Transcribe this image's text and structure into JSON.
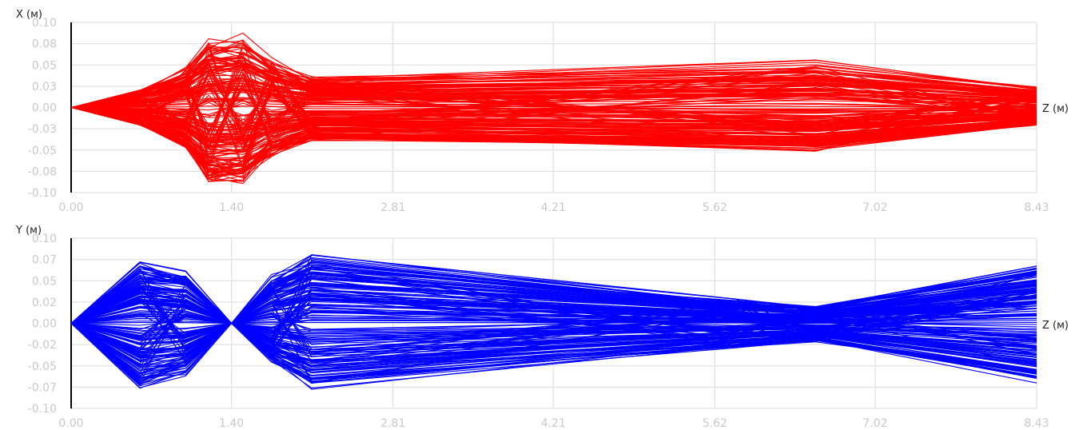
{
  "chart_data": [
    {
      "type": "line",
      "ylabel": "X (м)",
      "xlabel": "Z (м)",
      "color": "#ff0000",
      "x_ticks": [
        "0.00",
        "1.40",
        "2.81",
        "4.21",
        "5.62",
        "7.02",
        "8.43"
      ],
      "y_ticks": [
        "0.10",
        "0.08",
        "0.05",
        "0.03",
        "0.00",
        "-0.03",
        "-0.05",
        "-0.08",
        "-0.10"
      ],
      "xlim": [
        0,
        8.43
      ],
      "ylim": [
        -0.1,
        0.1
      ],
      "grid": true,
      "series_count": 200,
      "z_nodes": [
        0.0,
        0.6,
        1.0,
        1.2,
        1.5,
        1.75,
        2.1,
        6.5,
        8.43
      ],
      "envelope_max": [
        0.0,
        0.022,
        0.05,
        0.087,
        0.089,
        0.06,
        0.04,
        0.058,
        0.025
      ],
      "envelope_min": [
        0.0,
        -0.022,
        -0.05,
        -0.093,
        -0.09,
        -0.06,
        -0.04,
        -0.052,
        -0.022
      ]
    },
    {
      "type": "line",
      "ylabel": "Y (м)",
      "xlabel": "Z (м)",
      "color": "#0000ff",
      "x_ticks": [
        "0.00",
        "1.40",
        "2.81",
        "4.21",
        "5.62",
        "7.02",
        "8.43"
      ],
      "y_ticks": [
        "0.10",
        "0.07",
        "0.05",
        "0.02",
        "0.00",
        "-0.02",
        "-0.05",
        "-0.07",
        "-0.10"
      ],
      "xlim": [
        0,
        8.43
      ],
      "ylim": [
        -0.1,
        0.1
      ],
      "grid": true,
      "series_count": 200,
      "z_nodes": [
        0.0,
        0.6,
        1.0,
        1.4,
        1.75,
        2.1,
        5.8,
        6.5,
        8.43
      ],
      "envelope_max": [
        0.0,
        0.075,
        0.065,
        0.0,
        0.06,
        0.088,
        0.03,
        0.022,
        0.075
      ],
      "envelope_min": [
        0.0,
        -0.08,
        -0.065,
        0.0,
        -0.05,
        -0.08,
        -0.03,
        -0.022,
        -0.075
      ]
    }
  ]
}
